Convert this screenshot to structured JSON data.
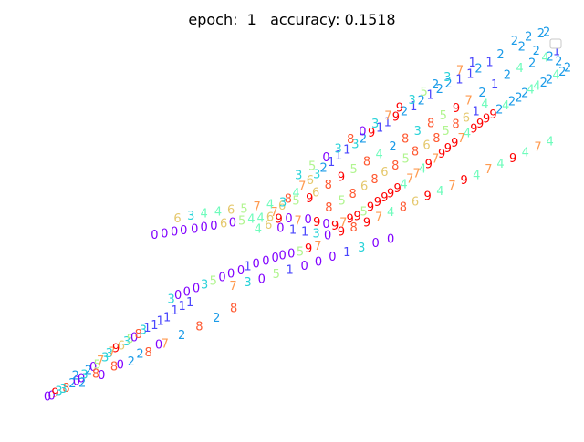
{
  "chart_data": {
    "type": "scatter",
    "title": "epoch:  1   accuracy: 0.1518",
    "xlabel": "",
    "ylabel": "",
    "axis_visible": false,
    "grid": false,
    "legend": "top-right",
    "legend_entries": [
      ""
    ],
    "marker": "digit-text",
    "xlim": [
      0,
      100
    ],
    "ylim": [
      0,
      100
    ],
    "colors": {
      "0": "#8000ff",
      "1": "#4a46fd",
      "2": "#1a9be8",
      "3": "#2ad3d9",
      "4": "#6ffcbc",
      "5": "#b1f590",
      "6": "#e5c86d",
      "7": "#ff9a4f",
      "8": "#ff5a33",
      "9": "#ff0000"
    },
    "points": [
      {
        "x": 0.0,
        "y": 0.0,
        "label": "0"
      },
      {
        "x": 0.8,
        "y": 0.3,
        "label": "0"
      },
      {
        "x": 1.5,
        "y": 1.0,
        "label": "9"
      },
      {
        "x": 2.2,
        "y": 1.5,
        "label": "3"
      },
      {
        "x": 3.6,
        "y": 2.4,
        "label": "8"
      },
      {
        "x": 4.8,
        "y": 3.6,
        "label": "2"
      },
      {
        "x": 5.6,
        "y": 4.2,
        "label": "0"
      },
      {
        "x": 6.5,
        "y": 5.0,
        "label": "0"
      },
      {
        "x": 7.1,
        "y": 6.0,
        "label": "3"
      },
      {
        "x": 7.9,
        "y": 7.3,
        "label": "2"
      },
      {
        "x": 8.8,
        "y": 8.1,
        "label": "0"
      },
      {
        "x": 9.6,
        "y": 8.8,
        "label": "5"
      },
      {
        "x": 10.2,
        "y": 9.9,
        "label": "7"
      },
      {
        "x": 11.1,
        "y": 10.8,
        "label": "3"
      },
      {
        "x": 11.9,
        "y": 11.9,
        "label": "3"
      },
      {
        "x": 12.4,
        "y": 12.3,
        "label": "7"
      },
      {
        "x": 13.2,
        "y": 13.3,
        "label": "9"
      },
      {
        "x": 14.2,
        "y": 14.0,
        "label": "6"
      },
      {
        "x": 15.3,
        "y": 15.1,
        "label": "3"
      },
      {
        "x": 15.9,
        "y": 15.8,
        "label": "5"
      },
      {
        "x": 16.7,
        "y": 16.3,
        "label": "0"
      },
      {
        "x": 17.5,
        "y": 17.1,
        "label": "8"
      },
      {
        "x": 18.4,
        "y": 18.2,
        "label": "3"
      },
      {
        "x": 19.2,
        "y": 18.9,
        "label": "1"
      },
      {
        "x": 20.6,
        "y": 19.6,
        "label": "1"
      },
      {
        "x": 21.7,
        "y": 20.8,
        "label": "1"
      },
      {
        "x": 23.0,
        "y": 21.8,
        "label": "1"
      },
      {
        "x": 24.5,
        "y": 23.6,
        "label": "1"
      },
      {
        "x": 25.9,
        "y": 24.9,
        "label": "1"
      },
      {
        "x": 27.4,
        "y": 25.9,
        "label": "1"
      },
      {
        "x": 23.8,
        "y": 26.8,
        "label": "3"
      },
      {
        "x": 25.1,
        "y": 27.9,
        "label": "0"
      },
      {
        "x": 26.8,
        "y": 28.8,
        "label": "0"
      },
      {
        "x": 28.6,
        "y": 29.8,
        "label": "0"
      },
      {
        "x": 30.2,
        "y": 30.8,
        "label": "3"
      },
      {
        "x": 31.9,
        "y": 31.7,
        "label": "5"
      },
      {
        "x": 33.6,
        "y": 32.7,
        "label": "0"
      },
      {
        "x": 35.3,
        "y": 33.8,
        "label": "0"
      },
      {
        "x": 37.2,
        "y": 34.6,
        "label": "0"
      },
      {
        "x": 38.5,
        "y": 35.8,
        "label": "1"
      },
      {
        "x": 40.1,
        "y": 36.5,
        "label": "0"
      },
      {
        "x": 42.0,
        "y": 37.2,
        "label": "0"
      },
      {
        "x": 43.8,
        "y": 38.1,
        "label": "0"
      },
      {
        "x": 45.2,
        "y": 38.7,
        "label": "0"
      },
      {
        "x": 46.9,
        "y": 39.3,
        "label": "0"
      },
      {
        "x": 48.6,
        "y": 39.8,
        "label": "5"
      },
      {
        "x": 50.2,
        "y": 40.6,
        "label": "9"
      },
      {
        "x": 52.0,
        "y": 41.4,
        "label": "7"
      },
      {
        "x": 20.6,
        "y": 44.4,
        "label": "0"
      },
      {
        "x": 22.5,
        "y": 44.7,
        "label": "0"
      },
      {
        "x": 24.4,
        "y": 45.2,
        "label": "0"
      },
      {
        "x": 26.2,
        "y": 45.6,
        "label": "0"
      },
      {
        "x": 28.3,
        "y": 46.0,
        "label": "0"
      },
      {
        "x": 30.1,
        "y": 46.5,
        "label": "0"
      },
      {
        "x": 32.0,
        "y": 46.9,
        "label": "0"
      },
      {
        "x": 33.9,
        "y": 47.5,
        "label": "6"
      },
      {
        "x": 35.6,
        "y": 47.7,
        "label": "0"
      },
      {
        "x": 37.4,
        "y": 48.2,
        "label": "5"
      },
      {
        "x": 39.2,
        "y": 48.8,
        "label": "4"
      },
      {
        "x": 41.0,
        "y": 49.0,
        "label": "4"
      },
      {
        "x": 42.8,
        "y": 49.3,
        "label": "6"
      },
      {
        "x": 44.5,
        "y": 48.7,
        "label": "9"
      },
      {
        "x": 46.4,
        "y": 48.9,
        "label": "0"
      },
      {
        "x": 48.2,
        "y": 48.3,
        "label": "7"
      },
      {
        "x": 50.1,
        "y": 48.6,
        "label": "0"
      },
      {
        "x": 51.8,
        "y": 47.9,
        "label": "9"
      },
      {
        "x": 53.6,
        "y": 47.4,
        "label": "0"
      },
      {
        "x": 55.3,
        "y": 46.9,
        "label": "9"
      },
      {
        "x": 56.9,
        "y": 47.8,
        "label": "7"
      },
      {
        "x": 58.2,
        "y": 48.7,
        "label": "9"
      },
      {
        "x": 59.6,
        "y": 49.5,
        "label": "9"
      },
      {
        "x": 60.8,
        "y": 50.8,
        "label": "5"
      },
      {
        "x": 62.1,
        "y": 52.0,
        "label": "9"
      },
      {
        "x": 63.5,
        "y": 53.4,
        "label": "9"
      },
      {
        "x": 64.8,
        "y": 54.6,
        "label": "9"
      },
      {
        "x": 66.0,
        "y": 55.8,
        "label": "9"
      },
      {
        "x": 67.3,
        "y": 57.1,
        "label": "9"
      },
      {
        "x": 68.5,
        "y": 58.3,
        "label": "4"
      },
      {
        "x": 69.7,
        "y": 59.7,
        "label": "7"
      },
      {
        "x": 71.0,
        "y": 61.2,
        "label": "7"
      },
      {
        "x": 72.1,
        "y": 62.5,
        "label": "4"
      },
      {
        "x": 73.3,
        "y": 63.8,
        "label": "9"
      },
      {
        "x": 74.6,
        "y": 65.3,
        "label": "7"
      },
      {
        "x": 75.8,
        "y": 66.6,
        "label": "9"
      },
      {
        "x": 77.0,
        "y": 68.1,
        "label": "9"
      },
      {
        "x": 78.3,
        "y": 69.6,
        "label": "9"
      },
      {
        "x": 79.6,
        "y": 70.9,
        "label": "7"
      },
      {
        "x": 80.7,
        "y": 72.2,
        "label": "4"
      },
      {
        "x": 82.0,
        "y": 73.5,
        "label": "9"
      },
      {
        "x": 83.2,
        "y": 74.9,
        "label": "9"
      },
      {
        "x": 84.4,
        "y": 76.2,
        "label": "9"
      },
      {
        "x": 85.7,
        "y": 77.4,
        "label": "9"
      },
      {
        "x": 86.9,
        "y": 78.7,
        "label": "2"
      },
      {
        "x": 88.1,
        "y": 79.9,
        "label": "4"
      },
      {
        "x": 89.3,
        "y": 81.0,
        "label": "2"
      },
      {
        "x": 90.6,
        "y": 82.0,
        "label": "2"
      },
      {
        "x": 91.8,
        "y": 83.3,
        "label": "2"
      },
      {
        "x": 92.9,
        "y": 84.2,
        "label": "4"
      },
      {
        "x": 94.1,
        "y": 85.2,
        "label": "4"
      },
      {
        "x": 95.4,
        "y": 86.1,
        "label": "2"
      },
      {
        "x": 96.5,
        "y": 87.0,
        "label": "2"
      },
      {
        "x": 97.8,
        "y": 88.2,
        "label": "4"
      },
      {
        "x": 99.0,
        "y": 89.1,
        "label": "2"
      },
      {
        "x": 100.0,
        "y": 90.2,
        "label": "2"
      },
      {
        "x": 98.3,
        "y": 92.0,
        "label": "2"
      },
      {
        "x": 96.6,
        "y": 93.3,
        "label": "2"
      },
      {
        "x": 94.0,
        "y": 94.9,
        "label": "2"
      },
      {
        "x": 91.2,
        "y": 96.0,
        "label": "2"
      },
      {
        "x": 89.8,
        "y": 97.6,
        "label": "2"
      },
      {
        "x": 92.5,
        "y": 98.7,
        "label": "2"
      },
      {
        "x": 94.9,
        "y": 99.6,
        "label": "2"
      },
      {
        "x": 96.0,
        "y": 100.0,
        "label": "2"
      },
      {
        "x": 87.1,
        "y": 93.9,
        "label": "2"
      },
      {
        "x": 85.0,
        "y": 91.8,
        "label": "1"
      },
      {
        "x": 82.9,
        "y": 90.0,
        "label": "2"
      },
      {
        "x": 81.3,
        "y": 88.5,
        "label": "1"
      },
      {
        "x": 79.2,
        "y": 87.0,
        "label": "1"
      },
      {
        "x": 77.1,
        "y": 85.9,
        "label": "2"
      },
      {
        "x": 75.4,
        "y": 84.4,
        "label": "2"
      },
      {
        "x": 73.6,
        "y": 82.8,
        "label": "1"
      },
      {
        "x": 71.9,
        "y": 81.2,
        "label": "2"
      },
      {
        "x": 70.4,
        "y": 79.6,
        "label": "1"
      },
      {
        "x": 68.6,
        "y": 78.3,
        "label": "2"
      },
      {
        "x": 67.0,
        "y": 76.8,
        "label": "9"
      },
      {
        "x": 65.4,
        "y": 75.3,
        "label": "1"
      },
      {
        "x": 63.9,
        "y": 73.8,
        "label": "1"
      },
      {
        "x": 62.3,
        "y": 72.4,
        "label": "9"
      },
      {
        "x": 60.7,
        "y": 70.8,
        "label": "2"
      },
      {
        "x": 59.2,
        "y": 69.3,
        "label": "3"
      },
      {
        "x": 57.6,
        "y": 67.7,
        "label": "1"
      },
      {
        "x": 56.0,
        "y": 66.1,
        "label": "1"
      },
      {
        "x": 54.6,
        "y": 64.4,
        "label": "1"
      },
      {
        "x": 53.1,
        "y": 62.8,
        "label": "2"
      },
      {
        "x": 51.8,
        "y": 61.0,
        "label": "3"
      },
      {
        "x": 50.5,
        "y": 59.4,
        "label": "6"
      },
      {
        "x": 49.0,
        "y": 57.7,
        "label": "7"
      },
      {
        "x": 47.8,
        "y": 55.9,
        "label": "4"
      },
      {
        "x": 46.3,
        "y": 54.2,
        "label": "8"
      },
      {
        "x": 45.1,
        "y": 52.4,
        "label": "6"
      },
      {
        "x": 43.6,
        "y": 50.6,
        "label": "7"
      },
      {
        "x": 54.1,
        "y": 51.9,
        "label": "8"
      },
      {
        "x": 56.6,
        "y": 53.8,
        "label": "5"
      },
      {
        "x": 58.7,
        "y": 55.6,
        "label": "8"
      },
      {
        "x": 60.9,
        "y": 57.7,
        "label": "6"
      },
      {
        "x": 62.9,
        "y": 59.6,
        "label": "8"
      },
      {
        "x": 64.8,
        "y": 61.6,
        "label": "6"
      },
      {
        "x": 66.9,
        "y": 63.4,
        "label": "8"
      },
      {
        "x": 68.9,
        "y": 65.3,
        "label": "5"
      },
      {
        "x": 70.7,
        "y": 67.2,
        "label": "8"
      },
      {
        "x": 72.9,
        "y": 69.0,
        "label": "6"
      },
      {
        "x": 74.8,
        "y": 70.9,
        "label": "8"
      },
      {
        "x": 76.6,
        "y": 72.9,
        "label": "5"
      },
      {
        "x": 78.5,
        "y": 74.7,
        "label": "8"
      },
      {
        "x": 80.5,
        "y": 76.5,
        "label": "6"
      },
      {
        "x": 82.4,
        "y": 78.3,
        "label": "1"
      },
      {
        "x": 84.1,
        "y": 80.2,
        "label": "4"
      },
      {
        "x": 48.3,
        "y": 60.7,
        "label": "3"
      },
      {
        "x": 50.9,
        "y": 63.2,
        "label": "5"
      },
      {
        "x": 53.6,
        "y": 65.6,
        "label": "0"
      },
      {
        "x": 55.9,
        "y": 68.0,
        "label": "3"
      },
      {
        "x": 58.3,
        "y": 70.6,
        "label": "8"
      },
      {
        "x": 60.6,
        "y": 72.7,
        "label": "0"
      },
      {
        "x": 63.0,
        "y": 74.9,
        "label": "3"
      },
      {
        "x": 65.5,
        "y": 77.0,
        "label": "7"
      },
      {
        "x": 67.7,
        "y": 79.2,
        "label": "9"
      },
      {
        "x": 70.1,
        "y": 81.4,
        "label": "3"
      },
      {
        "x": 72.4,
        "y": 83.6,
        "label": "5"
      },
      {
        "x": 74.6,
        "y": 85.6,
        "label": "2"
      },
      {
        "x": 76.9,
        "y": 87.6,
        "label": "3"
      },
      {
        "x": 79.3,
        "y": 89.5,
        "label": "7"
      },
      {
        "x": 81.7,
        "y": 91.6,
        "label": "1"
      },
      {
        "x": 40.5,
        "y": 46.0,
        "label": "4"
      },
      {
        "x": 42.5,
        "y": 47.1,
        "label": "6"
      },
      {
        "x": 44.8,
        "y": 46.3,
        "label": "0"
      },
      {
        "x": 47.2,
        "y": 45.7,
        "label": "1"
      },
      {
        "x": 49.5,
        "y": 45.2,
        "label": "1"
      },
      {
        "x": 51.7,
        "y": 44.7,
        "label": "3"
      },
      {
        "x": 53.9,
        "y": 44.2,
        "label": "0"
      },
      {
        "x": 56.5,
        "y": 45.3,
        "label": "9"
      },
      {
        "x": 58.9,
        "y": 46.4,
        "label": "8"
      },
      {
        "x": 61.4,
        "y": 47.8,
        "label": "9"
      },
      {
        "x": 63.7,
        "y": 49.2,
        "label": "7"
      },
      {
        "x": 66.0,
        "y": 50.6,
        "label": "4"
      },
      {
        "x": 68.4,
        "y": 52.0,
        "label": "8"
      },
      {
        "x": 70.7,
        "y": 53.5,
        "label": "6"
      },
      {
        "x": 73.1,
        "y": 55.0,
        "label": "9"
      },
      {
        "x": 75.5,
        "y": 56.4,
        "label": "4"
      },
      {
        "x": 77.8,
        "y": 57.9,
        "label": "7"
      },
      {
        "x": 80.1,
        "y": 59.4,
        "label": "9"
      },
      {
        "x": 82.5,
        "y": 60.8,
        "label": "4"
      },
      {
        "x": 84.8,
        "y": 62.4,
        "label": "7"
      },
      {
        "x": 87.1,
        "y": 63.9,
        "label": "4"
      },
      {
        "x": 89.5,
        "y": 65.4,
        "label": "9"
      },
      {
        "x": 91.9,
        "y": 67.0,
        "label": "4"
      },
      {
        "x": 94.3,
        "y": 68.5,
        "label": "7"
      },
      {
        "x": 96.6,
        "y": 70.0,
        "label": "4"
      },
      {
        "x": 25.0,
        "y": 48.9,
        "label": "6"
      },
      {
        "x": 27.6,
        "y": 49.6,
        "label": "3"
      },
      {
        "x": 30.1,
        "y": 50.2,
        "label": "4"
      },
      {
        "x": 32.8,
        "y": 50.8,
        "label": "4"
      },
      {
        "x": 35.3,
        "y": 51.2,
        "label": "6"
      },
      {
        "x": 37.8,
        "y": 51.5,
        "label": "5"
      },
      {
        "x": 40.3,
        "y": 52.1,
        "label": "7"
      },
      {
        "x": 42.8,
        "y": 52.8,
        "label": "4"
      },
      {
        "x": 45.3,
        "y": 53.3,
        "label": "3"
      },
      {
        "x": 47.8,
        "y": 53.8,
        "label": "5"
      },
      {
        "x": 50.4,
        "y": 54.4,
        "label": "9"
      },
      {
        "x": 35.7,
        "y": 30.4,
        "label": "7"
      },
      {
        "x": 38.5,
        "y": 31.4,
        "label": "3"
      },
      {
        "x": 41.2,
        "y": 32.3,
        "label": "0"
      },
      {
        "x": 44.0,
        "y": 33.6,
        "label": "5"
      },
      {
        "x": 46.6,
        "y": 34.8,
        "label": "1"
      },
      {
        "x": 49.4,
        "y": 35.9,
        "label": "0"
      },
      {
        "x": 52.1,
        "y": 37.0,
        "label": "0"
      },
      {
        "x": 54.8,
        "y": 38.4,
        "label": "0"
      },
      {
        "x": 57.6,
        "y": 39.6,
        "label": "1"
      },
      {
        "x": 60.4,
        "y": 40.9,
        "label": "3"
      },
      {
        "x": 63.1,
        "y": 42.1,
        "label": "0"
      },
      {
        "x": 66.0,
        "y": 43.3,
        "label": "0"
      },
      {
        "x": 5.4,
        "y": 5.7,
        "label": "2"
      },
      {
        "x": 9.3,
        "y": 6.3,
        "label": "8"
      },
      {
        "x": 12.8,
        "y": 8.2,
        "label": "8"
      },
      {
        "x": 16.1,
        "y": 9.6,
        "label": "2"
      },
      {
        "x": 19.4,
        "y": 12.1,
        "label": "8"
      },
      {
        "x": 22.6,
        "y": 14.5,
        "label": "7"
      },
      {
        "x": 25.8,
        "y": 16.9,
        "label": "2"
      },
      {
        "x": 29.2,
        "y": 19.2,
        "label": "8"
      },
      {
        "x": 32.5,
        "y": 21.6,
        "label": "2"
      },
      {
        "x": 35.8,
        "y": 24.2,
        "label": "8"
      },
      {
        "x": 3.1,
        "y": 2.1,
        "label": "3"
      },
      {
        "x": 6.7,
        "y": 3.8,
        "label": "2"
      },
      {
        "x": 10.4,
        "y": 5.9,
        "label": "0"
      },
      {
        "x": 14.0,
        "y": 8.8,
        "label": "0"
      },
      {
        "x": 17.8,
        "y": 11.7,
        "label": "2"
      },
      {
        "x": 21.4,
        "y": 14.2,
        "label": "0"
      },
      {
        "x": 88.4,
        "y": 88.3,
        "label": "2"
      },
      {
        "x": 90.8,
        "y": 90.1,
        "label": "4"
      },
      {
        "x": 93.2,
        "y": 91.5,
        "label": "2"
      },
      {
        "x": 95.7,
        "y": 93.0,
        "label": "4"
      },
      {
        "x": 97.9,
        "y": 94.8,
        "label": "1"
      },
      {
        "x": 86.0,
        "y": 85.6,
        "label": "1"
      },
      {
        "x": 83.6,
        "y": 83.4,
        "label": "2"
      },
      {
        "x": 81.0,
        "y": 81.3,
        "label": "7"
      },
      {
        "x": 78.6,
        "y": 79.1,
        "label": "9"
      },
      {
        "x": 76.1,
        "y": 77.1,
        "label": "5"
      },
      {
        "x": 73.7,
        "y": 75.0,
        "label": "8"
      },
      {
        "x": 71.2,
        "y": 72.9,
        "label": "3"
      },
      {
        "x": 68.8,
        "y": 70.8,
        "label": "8"
      },
      {
        "x": 66.4,
        "y": 68.6,
        "label": "2"
      },
      {
        "x": 63.8,
        "y": 66.5,
        "label": "4"
      },
      {
        "x": 61.4,
        "y": 64.5,
        "label": "8"
      },
      {
        "x": 58.9,
        "y": 62.4,
        "label": "5"
      },
      {
        "x": 56.5,
        "y": 60.2,
        "label": "9"
      },
      {
        "x": 54.0,
        "y": 58.1,
        "label": "8"
      },
      {
        "x": 51.6,
        "y": 56.0,
        "label": "6"
      }
    ]
  }
}
